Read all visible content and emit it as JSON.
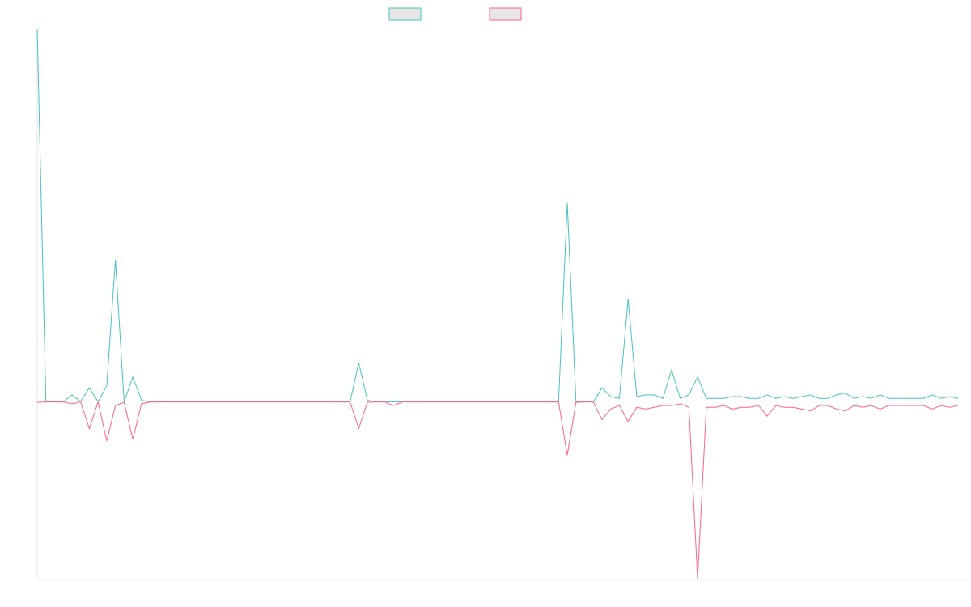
{
  "chart_data": {
    "type": "line",
    "title": "",
    "xlabel": "",
    "ylabel": "",
    "legend": {
      "placement": "top-center"
    },
    "grid": false,
    "ylim": [
      -1.0,
      2.1
    ],
    "x_count": 108,
    "series": [
      {
        "color": "#4bc0c0",
        "legend_fill": "#e6e6e6",
        "values": [
          2.1,
          0.002,
          0,
          0,
          0.04,
          0.002,
          0.08,
          0.002,
          0.09,
          0.8,
          0.002,
          0.14,
          0.01,
          0,
          0,
          0,
          0,
          0,
          0,
          0,
          0,
          0,
          0,
          0,
          0,
          0,
          0,
          0,
          0,
          0,
          0,
          0,
          0,
          0,
          0,
          0,
          0,
          0.22,
          0.01,
          0,
          0,
          0.002,
          0,
          0,
          0,
          0,
          0,
          0,
          0,
          0,
          0,
          0,
          0,
          0,
          0,
          0,
          0,
          0,
          0,
          0,
          0,
          1.12,
          0.002,
          0,
          0,
          0.08,
          0.03,
          0.02,
          0.58,
          0.03,
          0.04,
          0.04,
          0.02,
          0.18,
          0.02,
          0.04,
          0.14,
          0.02,
          0.02,
          0.02,
          0.03,
          0.03,
          0.02,
          0.02,
          0.04,
          0.02,
          0.03,
          0.02,
          0.03,
          0.04,
          0.02,
          0.02,
          0.04,
          0.05,
          0.02,
          0.03,
          0.02,
          0.04,
          0.02,
          0.02,
          0.02,
          0.02,
          0.02,
          0.04,
          0.02,
          0.03,
          0.02
        ]
      },
      {
        "color": "#ff6384",
        "legend_fill": "#e6e6e6",
        "values": [
          -0.002,
          0,
          0,
          0,
          -0.01,
          0,
          -0.15,
          0,
          -0.22,
          -0.02,
          -0.002,
          -0.21,
          -0.01,
          0,
          0,
          0,
          0,
          0,
          0,
          0,
          0,
          0,
          0,
          0,
          0,
          0,
          0,
          0,
          0,
          0,
          0,
          0,
          0,
          0,
          0,
          0,
          0,
          -0.15,
          -0.002,
          0,
          0,
          -0.02,
          0,
          0,
          0,
          0,
          0,
          0,
          0,
          0,
          0,
          0,
          0,
          0,
          0,
          0,
          0,
          0,
          0,
          0,
          0,
          -0.3,
          -0.002,
          0,
          0,
          -0.1,
          -0.04,
          -0.02,
          -0.11,
          -0.03,
          -0.04,
          -0.03,
          -0.02,
          -0.02,
          -0.01,
          -0.03,
          -1.0,
          -0.03,
          -0.03,
          -0.02,
          -0.04,
          -0.03,
          -0.03,
          -0.02,
          -0.08,
          -0.02,
          -0.03,
          -0.03,
          -0.04,
          -0.05,
          -0.02,
          -0.02,
          -0.04,
          -0.05,
          -0.02,
          -0.03,
          -0.02,
          -0.04,
          -0.02,
          -0.02,
          -0.02,
          -0.02,
          -0.02,
          -0.04,
          -0.02,
          -0.03,
          -0.02
        ]
      }
    ]
  }
}
